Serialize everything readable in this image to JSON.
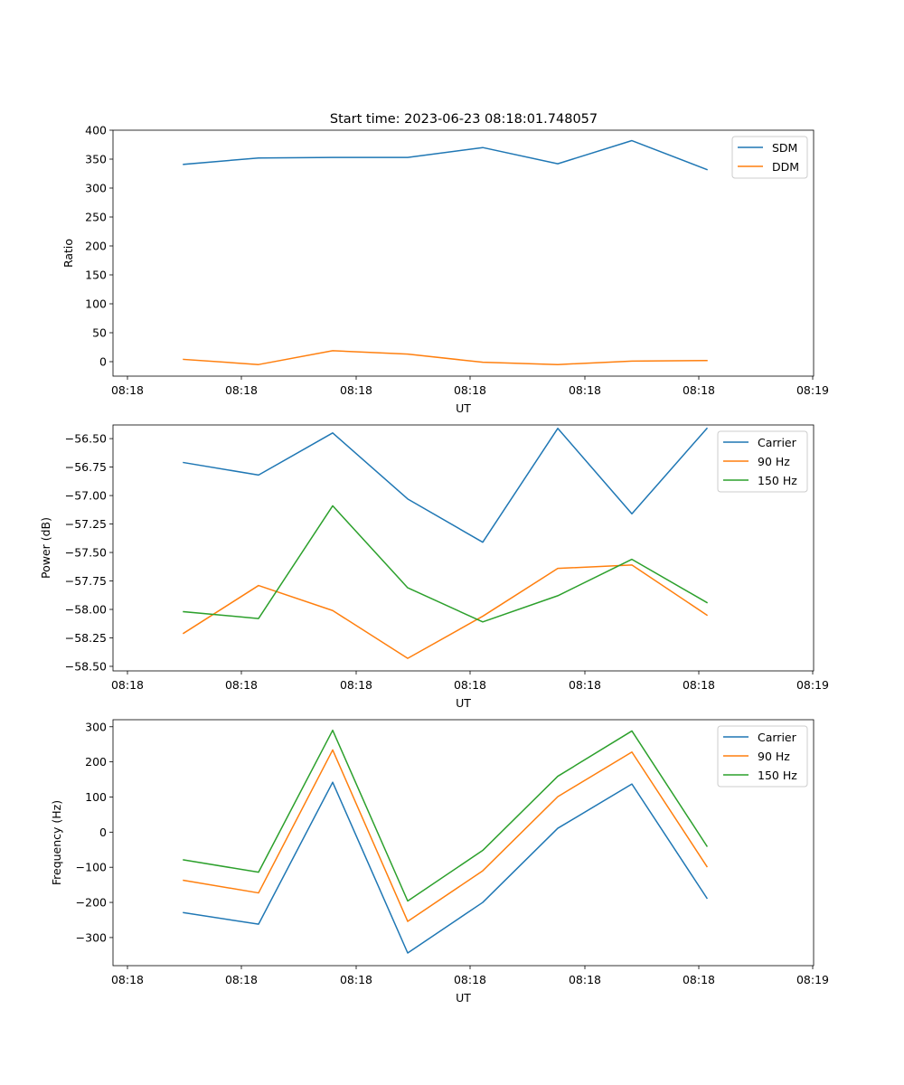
{
  "figure": {
    "title": "Start time: 2023-06-23 08:18:01.748057"
  },
  "chart_data": [
    {
      "type": "line",
      "title": "Start time: 2023-06-23 08:18:01.748057",
      "xlabel": "UT",
      "ylabel": "Ratio",
      "x_tick_labels": [
        "08:18",
        "08:18",
        "08:18",
        "08:18",
        "08:18",
        "08:18",
        "08:19"
      ],
      "x": [
        "08:18 (1)",
        "08:18 (2)",
        "08:18 (3)",
        "08:18 (4)",
        "08:18 (5)",
        "08:18 (6)",
        "08:18 (7)",
        "08:18 (8)"
      ],
      "ylim": [
        -25,
        400
      ],
      "yticks": [
        0,
        50,
        100,
        150,
        200,
        250,
        300,
        350,
        400
      ],
      "ytick_labels": [
        "0",
        "50",
        "100",
        "150",
        "200",
        "250",
        "300",
        "350",
        "400"
      ],
      "legend": "top-right",
      "grid": false,
      "series": [
        {
          "name": "SDM",
          "color": "#1f77b4",
          "values": [
            341,
            352,
            353,
            353,
            370,
            342,
            382,
            332
          ]
        },
        {
          "name": "DDM",
          "color": "#ff7f0e",
          "values": [
            4,
            -5,
            19,
            13,
            -1,
            -5,
            1,
            2
          ]
        }
      ]
    },
    {
      "type": "line",
      "xlabel": "UT",
      "ylabel": "Power (dB)",
      "x_tick_labels": [
        "08:18",
        "08:18",
        "08:18",
        "08:18",
        "08:18",
        "08:18",
        "08:19"
      ],
      "x": [
        "08:18 (1)",
        "08:18 (2)",
        "08:18 (3)",
        "08:18 (4)",
        "08:18 (5)",
        "08:18 (6)",
        "08:18 (7)",
        "08:18 (8)"
      ],
      "ylim": [
        -58.54,
        -56.38
      ],
      "yticks": [
        -58.5,
        -58.25,
        -58.0,
        -57.75,
        -57.5,
        -57.25,
        -57.0,
        -56.75,
        -56.5
      ],
      "ytick_labels": [
        "−58.50",
        "−58.25",
        "−58.00",
        "−57.75",
        "−57.50",
        "−57.25",
        "−57.00",
        "−56.75",
        "−56.50"
      ],
      "legend": "top-right",
      "grid": false,
      "series": [
        {
          "name": "Carrier",
          "color": "#1f77b4",
          "values": [
            -56.71,
            -56.82,
            -56.45,
            -57.03,
            -57.41,
            -56.41,
            -57.16,
            -56.41
          ]
        },
        {
          "name": "90 Hz",
          "color": "#ff7f0e",
          "values": [
            -58.21,
            -57.79,
            -58.01,
            -58.43,
            -58.06,
            -57.64,
            -57.61,
            -58.05
          ]
        },
        {
          "name": "150 Hz",
          "color": "#2ca02c",
          "values": [
            -58.02,
            -58.08,
            -57.09,
            -57.81,
            -58.11,
            -57.88,
            -57.56,
            -57.94
          ]
        }
      ]
    },
    {
      "type": "line",
      "xlabel": "UT",
      "ylabel": "Frequency (Hz)",
      "x_tick_labels": [
        "08:18",
        "08:18",
        "08:18",
        "08:18",
        "08:18",
        "08:18",
        "08:19"
      ],
      "x": [
        "08:18 (1)",
        "08:18 (2)",
        "08:18 (3)",
        "08:18 (4)",
        "08:18 (5)",
        "08:18 (6)",
        "08:18 (7)",
        "08:18 (8)"
      ],
      "ylim": [
        -380,
        320
      ],
      "yticks": [
        -300,
        -200,
        -100,
        0,
        100,
        200,
        300
      ],
      "ytick_labels": [
        "−300",
        "−200",
        "−100",
        "0",
        "100",
        "200",
        "300"
      ],
      "legend": "top-right",
      "grid": false,
      "series": [
        {
          "name": "Carrier",
          "color": "#1f77b4",
          "values": [
            -229,
            -262,
            142,
            -344,
            -200,
            11,
            137,
            -188
          ]
        },
        {
          "name": "90 Hz",
          "color": "#ff7f0e",
          "values": [
            -137,
            -173,
            234,
            -254,
            -110,
            101,
            228,
            -98
          ]
        },
        {
          "name": "150 Hz",
          "color": "#2ca02c",
          "values": [
            -79,
            -114,
            290,
            -196,
            -52,
            159,
            288,
            -40
          ]
        }
      ]
    }
  ]
}
